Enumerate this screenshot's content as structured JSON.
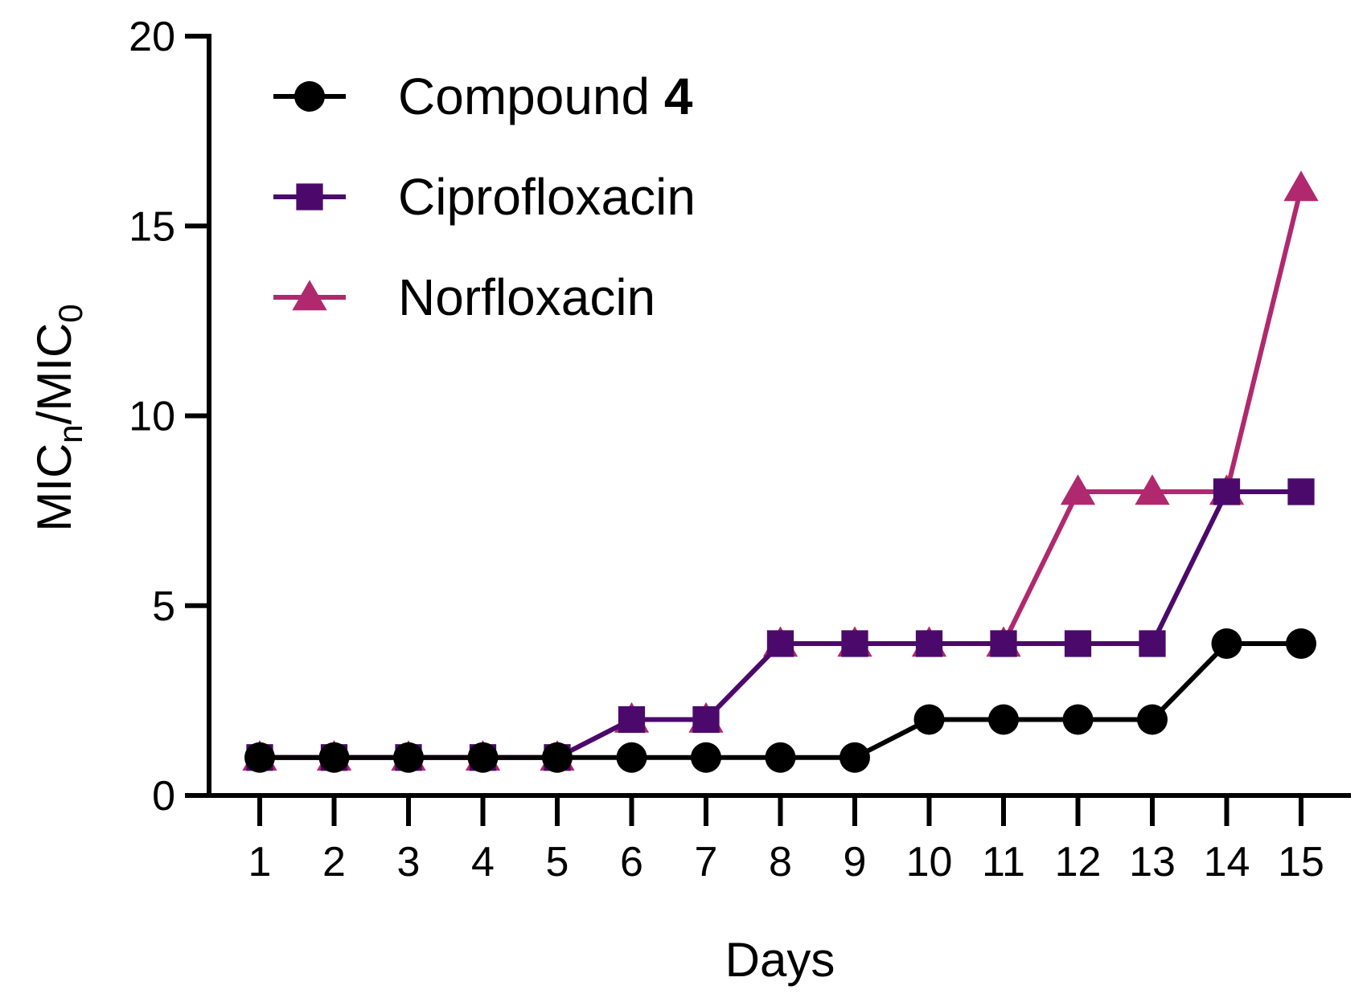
{
  "chart_data": {
    "type": "line",
    "xlabel": "Days",
    "ylabel": {
      "parts": [
        {
          "text": "MIC",
          "sub": false
        },
        {
          "text": "n",
          "sub": true
        },
        {
          "text": "/MIC",
          "sub": false
        },
        {
          "text": "0",
          "sub": true
        }
      ]
    },
    "x": [
      1,
      2,
      3,
      4,
      5,
      6,
      7,
      8,
      9,
      10,
      11,
      12,
      13,
      14,
      15
    ],
    "ylim": [
      0,
      20
    ],
    "yticks": [
      0,
      5,
      10,
      15,
      20
    ],
    "xtick_labels": [
      "1",
      "2",
      "3",
      "4",
      "5",
      "6",
      "7",
      "8",
      "9",
      "10",
      "11",
      "12",
      "13",
      "14",
      "15"
    ],
    "legend_position": "top-left",
    "grid": false,
    "series": [
      {
        "name": "Compound",
        "name_bold_suffix": "4",
        "color": "#000000",
        "marker": "circle",
        "values": [
          1,
          1,
          1,
          1,
          1,
          1,
          1,
          1,
          1,
          2,
          2,
          2,
          2,
          4,
          4
        ]
      },
      {
        "name": "Ciprofloxacin",
        "name_bold_suffix": "",
        "color": "#4b0a6b",
        "marker": "square",
        "values": [
          1,
          1,
          1,
          1,
          1,
          2,
          2,
          4,
          4,
          4,
          4,
          4,
          4,
          8,
          8
        ]
      },
      {
        "name": "Norfloxacin",
        "name_bold_suffix": "",
        "color": "#b0296e",
        "marker": "triangle",
        "values": [
          1,
          1,
          1,
          1,
          1,
          2,
          2,
          4,
          4,
          4,
          4,
          8,
          8,
          8,
          16
        ]
      }
    ]
  }
}
